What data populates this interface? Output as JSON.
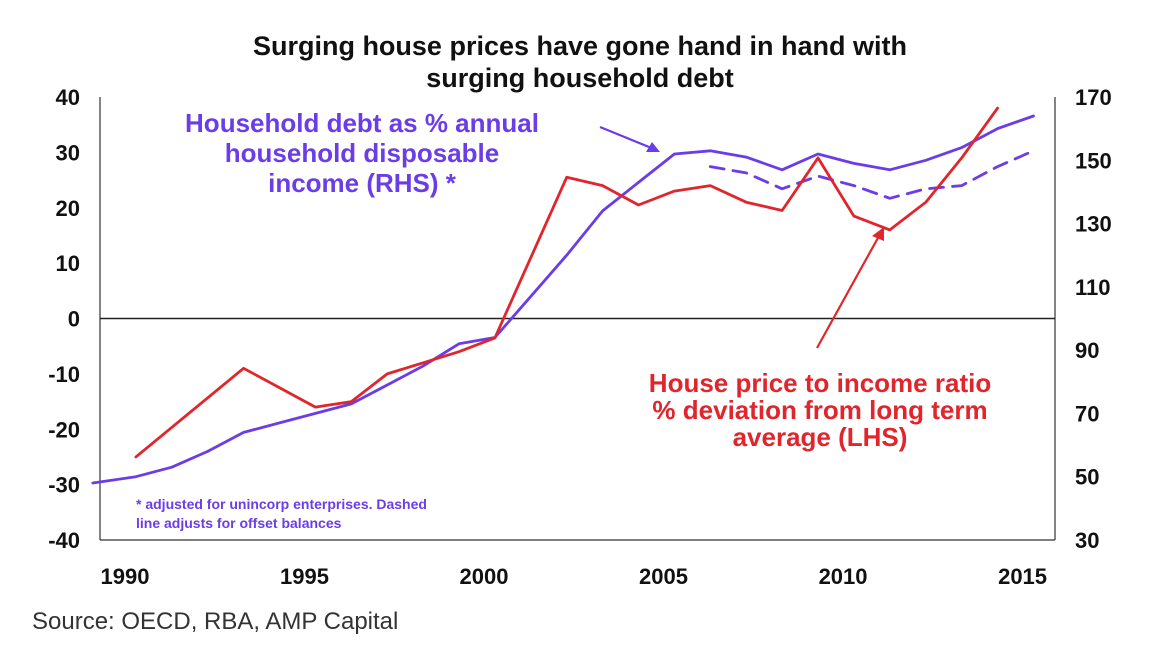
{
  "title": {
    "line1": "Surging house prices have gone hand in hand with",
    "line2": "surging household debt"
  },
  "source": "Source: OECD, RBA, AMP Capital",
  "chart_data": {
    "type": "line",
    "x_ticks": [
      "1990",
      "1995",
      "2000",
      "2005",
      "2010",
      "2015"
    ],
    "left_axis": {
      "ticks": [
        "40",
        "30",
        "20",
        "10",
        "0",
        "-10",
        "-20",
        "-30",
        "-40"
      ],
      "range": [
        -40,
        40
      ]
    },
    "right_axis": {
      "ticks": [
        "170",
        "150",
        "130",
        "110",
        "90",
        "70",
        "50",
        "30"
      ],
      "range": [
        30,
        170
      ]
    },
    "xlim": [
      1990,
      2016.6
    ],
    "series": [
      {
        "key": "debt",
        "axis": "right",
        "color": "#6a3de8",
        "style": "solid",
        "x": [
          1989.8,
          1991,
          1992,
          1993,
          1994,
          1995,
          1996,
          1997,
          1998,
          1999,
          2000,
          2001,
          2002,
          2003,
          2004,
          2005,
          2006,
          2007,
          2008,
          2009,
          2010,
          2011,
          2012,
          2013,
          2014,
          2015,
          2016
        ],
        "y": [
          48,
          50,
          53,
          58,
          64,
          67,
          70,
          73,
          79,
          85,
          92,
          94,
          107,
          120,
          134,
          143,
          152,
          153,
          151,
          147,
          152,
          149,
          147,
          150,
          154,
          160,
          164
        ]
      },
      {
        "key": "debt_adjusted",
        "axis": "right",
        "color": "#6a3de8",
        "style": "dashed",
        "x": [
          2007,
          2008,
          2009,
          2010,
          2011,
          2012,
          2013,
          2014,
          2015,
          2016
        ],
        "y": [
          148,
          146,
          141,
          145,
          142,
          138,
          141,
          142,
          148,
          153
        ]
      },
      {
        "key": "house_price",
        "axis": "left",
        "color": "#e0262c",
        "style": "solid",
        "x": [
          1991,
          1994,
          1996,
          1997,
          1998,
          1999,
          2000,
          2001,
          2003,
          2004,
          2005,
          2006,
          2007,
          2008,
          2009,
          2010,
          2011,
          2012,
          2013,
          2014,
          2015
        ],
        "y": [
          -25,
          -9,
          -16,
          -15,
          -10,
          -8,
          -6,
          -3.5,
          25.5,
          24,
          20.5,
          23,
          24,
          21,
          19.5,
          29,
          18.5,
          16,
          21,
          29,
          38
        ]
      }
    ],
    "annotations": {
      "debt_label": [
        "Household debt as % annual",
        "household disposable",
        "income (RHS) *"
      ],
      "price_label": [
        "House price to income ratio",
        "% deviation from long term",
        "average (LHS)"
      ],
      "footnote": [
        "* adjusted for unincorp enterprises. Dashed",
        "line adjusts for offset balances"
      ]
    },
    "zero_line": true,
    "grid": false
  }
}
